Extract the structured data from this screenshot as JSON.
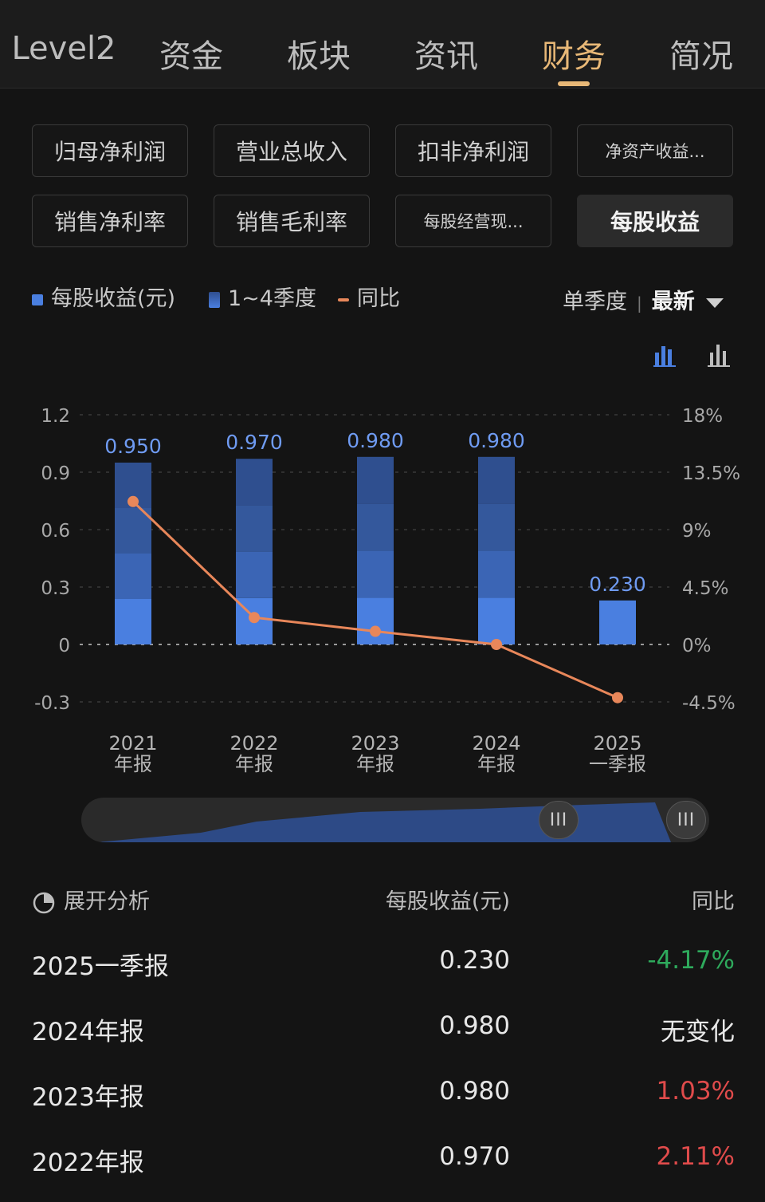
{
  "tabs": [
    "Level2",
    "资金",
    "板块",
    "资讯",
    "财务",
    "简况"
  ],
  "active_tab": "财务",
  "metrics": [
    "归母净利润",
    "营业总收入",
    "扣非净利润",
    "净资产收益...",
    "销售净利率",
    "销售毛利率",
    "每股经营现...",
    "每股收益"
  ],
  "active_metric": "每股收益",
  "legend": {
    "eps": "每股收益(元)",
    "quarters": "1~4季度",
    "yoy": "同比"
  },
  "mode": {
    "label": "单季度",
    "selected": "最新"
  },
  "colors": {
    "accent": "#e8b877",
    "bar_top": "#2f4f8f",
    "bar_q3": "#34589c",
    "bar_q2": "#3b65b5",
    "bar_q1": "#4a7fe0",
    "line": "#e8875a",
    "value_label": "#6f9bf2",
    "down": "#2eaa5c",
    "up": "#e04b4b"
  },
  "chart_data": {
    "type": "bar",
    "categories": [
      "2021年报",
      "2022年报",
      "2023年报",
      "2024年报",
      "2025一季报"
    ],
    "category_lines": [
      [
        "2021",
        "年报"
      ],
      [
        "2022",
        "年报"
      ],
      [
        "2023",
        "年报"
      ],
      [
        "2024",
        "年报"
      ],
      [
        "2025",
        "一季报"
      ]
    ],
    "bar_labels": [
      "0.950",
      "0.970",
      "0.980",
      "0.980",
      "0.230"
    ],
    "series": [
      {
        "name": "每股收益(元)",
        "values": [
          0.95,
          0.97,
          0.98,
          0.98,
          0.23
        ],
        "quarters": [
          4,
          4,
          4,
          4,
          1
        ]
      },
      {
        "name": "同比",
        "values": [
          11.2,
          2.11,
          1.03,
          0,
          -4.17
        ],
        "axis": "right"
      }
    ],
    "ylim_left": [
      -0.3,
      1.2
    ],
    "yticks_left": [
      "1.2",
      "0.9",
      "0.6",
      "0.3",
      "0",
      "-0.3"
    ],
    "ylim_right": [
      -4.5,
      18
    ],
    "yticks_right": [
      "18%",
      "13.5%",
      "9%",
      "4.5%",
      "0%",
      "-4.5%"
    ]
  },
  "table": {
    "header": {
      "expand": "展开分析",
      "eps": "每股收益(元)",
      "yoy": "同比"
    },
    "rows": [
      {
        "period": "2025一季报",
        "eps": "0.230",
        "yoy": "-4.17%",
        "trend": "down"
      },
      {
        "period": "2024年报",
        "eps": "0.980",
        "yoy": "无变化",
        "trend": "flat"
      },
      {
        "period": "2023年报",
        "eps": "0.980",
        "yoy": "1.03%",
        "trend": "up"
      },
      {
        "period": "2022年报",
        "eps": "0.970",
        "yoy": "2.11%",
        "trend": "up"
      }
    ]
  }
}
